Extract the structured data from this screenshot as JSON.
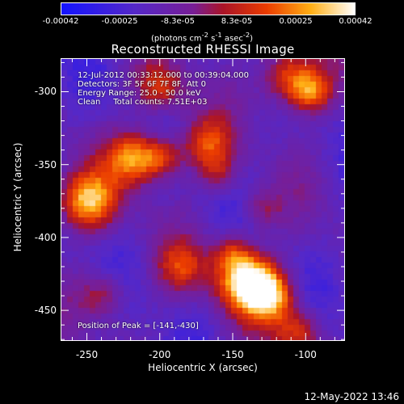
{
  "colorbar": {
    "ticks": [
      "-0.00042",
      "-0.00025",
      "-8.3e-05",
      "8.3e-05",
      "0.00025",
      "0.00042"
    ],
    "units_html": "(photons cm<sup>-2</sup> s<sup>-1</sup> asec<sup>-2</sup>)",
    "range": [
      -0.00042,
      0.00042
    ],
    "colormap": "blue-purple-red-yellow-white"
  },
  "chart_data": {
    "type": "heatmap",
    "title": "Reconstructed RHESSI Image",
    "xlabel": "Heliocentric X (arcsec)",
    "ylabel": "Heliocentric Y (arcsec)",
    "xlim": [
      -268,
      -73
    ],
    "ylim": [
      -471,
      -277
    ],
    "xticks": [
      "-250",
      "-200",
      "-150",
      "-100"
    ],
    "xtick_values": [
      -250,
      -200,
      -150,
      -100
    ],
    "yticks": [
      "-300",
      "-350",
      "-400",
      "-450"
    ],
    "ytick_values": [
      -300,
      -350,
      -400,
      -450
    ],
    "peak": [
      -141,
      -430
    ],
    "annotations": {
      "line1": "12-Jul-2012 00:33:12.000 to 00:39:04.000",
      "line2": "Detectors: 3F 5F 6F 7F 8F, Att 0",
      "line3": "Energy Range: 25.0 - 50.0 keV",
      "line4": "Clean     Total counts: 7.51E+03",
      "peak_text": "Position of Peak = [-141,-430]"
    }
  },
  "footer": {
    "timestamp": "12-May-2022 13:46"
  }
}
